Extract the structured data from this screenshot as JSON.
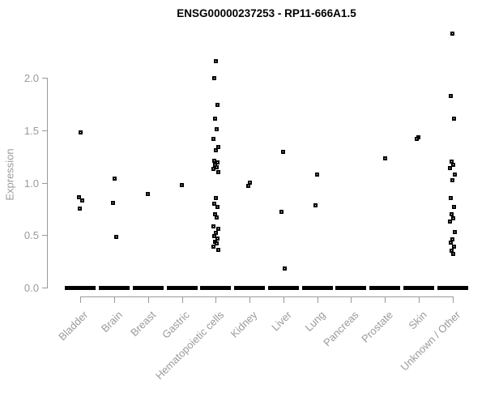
{
  "chart_data": {
    "type": "scatter",
    "title": "ENSG00000237253 - RP11-666A1.5",
    "xlabel": "",
    "ylabel": "Expression",
    "yticks": [
      0.0,
      0.5,
      1.0,
      1.5,
      2.0
    ],
    "ylim": [
      0,
      2.45
    ],
    "grid": false,
    "legend": "none",
    "marker": "open-square",
    "categories": [
      "Bladder",
      "Brain",
      "Breast",
      "Gastric",
      "Hematopoietic cells",
      "Kidney",
      "Liver",
      "Lung",
      "Pancreas",
      "Prostate",
      "Skin",
      "Unknown / Other"
    ],
    "series": [
      {
        "name": "Bladder",
        "values": [
          1.48,
          0.86,
          0.83,
          0.75
        ]
      },
      {
        "name": "Brain",
        "values": [
          1.04,
          0.81,
          0.48
        ]
      },
      {
        "name": "Breast",
        "values": [
          0.89
        ]
      },
      {
        "name": "Gastric",
        "values": [
          0.98
        ]
      },
      {
        "name": "Hematopoietic cells",
        "values": [
          2.16,
          2.0,
          1.74,
          1.61,
          1.51,
          1.42,
          1.34,
          1.31,
          1.21,
          1.19,
          1.17,
          1.15,
          1.13,
          1.1,
          0.85,
          0.8,
          0.77,
          0.7,
          0.67,
          0.58,
          0.56,
          0.52,
          0.49,
          0.47,
          0.44,
          0.42,
          0.39,
          0.36
        ]
      },
      {
        "name": "Kidney",
        "values": [
          1.0,
          0.97
        ]
      },
      {
        "name": "Liver",
        "values": [
          1.29,
          0.72,
          0.18
        ]
      },
      {
        "name": "Lung",
        "values": [
          1.08,
          0.78
        ]
      },
      {
        "name": "Pancreas",
        "values": []
      },
      {
        "name": "Prostate",
        "values": [
          1.23
        ]
      },
      {
        "name": "Skin",
        "values": [
          1.43,
          1.42
        ]
      },
      {
        "name": "Unknown / Other",
        "values": [
          2.42,
          1.83,
          1.61,
          1.2,
          1.17,
          1.14,
          1.08,
          1.02,
          0.85,
          0.77,
          0.7,
          0.66,
          0.63,
          0.53,
          0.46,
          0.43,
          0.39,
          0.35,
          0.32
        ]
      }
    ],
    "zero_pileup_dash_all_categories": true
  },
  "colors": {
    "point": "#000000",
    "axis": "#9a9a9a",
    "tick_text": "#9a9a9a",
    "title_text": "#000000",
    "background": "#ffffff"
  }
}
